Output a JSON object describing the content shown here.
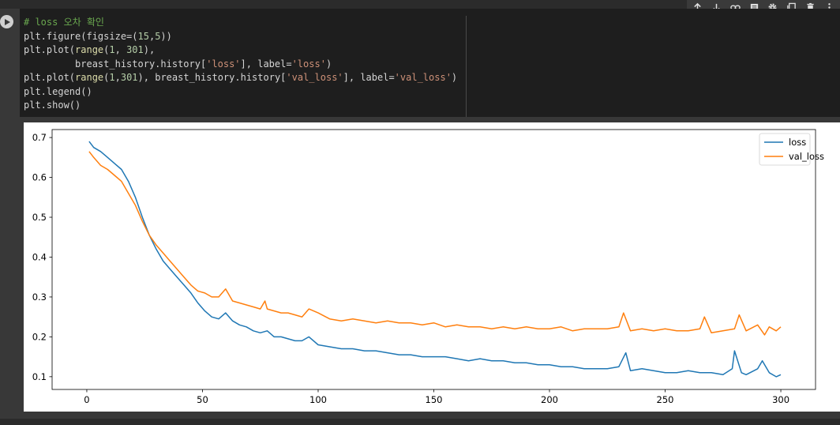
{
  "cell": {
    "run_icon": "play-icon",
    "toolbar": [
      {
        "name": "move-up",
        "icon": "arrow-up-icon"
      },
      {
        "name": "move-down",
        "icon": "arrow-down-icon"
      },
      {
        "name": "link",
        "icon": "link-icon"
      },
      {
        "name": "comment",
        "icon": "comment-icon"
      },
      {
        "name": "settings",
        "icon": "gear-icon"
      },
      {
        "name": "mirror",
        "icon": "mirror-icon"
      },
      {
        "name": "delete",
        "icon": "trash-icon"
      },
      {
        "name": "more",
        "icon": "more-vert-icon"
      }
    ],
    "code_lines": [
      [
        {
          "t": "# loss 오차 확인",
          "c": "com"
        }
      ],
      [
        {
          "t": "plt.figure(figsize=(",
          "c": ""
        },
        {
          "t": "15",
          "c": "num"
        },
        {
          "t": ",",
          "c": ""
        },
        {
          "t": "5",
          "c": "num"
        },
        {
          "t": "))",
          "c": ""
        }
      ],
      [
        {
          "t": "plt.plot(",
          "c": ""
        },
        {
          "t": "range",
          "c": "fn"
        },
        {
          "t": "(",
          "c": ""
        },
        {
          "t": "1",
          "c": "num"
        },
        {
          "t": ", ",
          "c": ""
        },
        {
          "t": "301",
          "c": "num"
        },
        {
          "t": "),",
          "c": ""
        }
      ],
      [
        {
          "t": "         breast_history.history[",
          "c": ""
        },
        {
          "t": "'loss'",
          "c": "str"
        },
        {
          "t": "], label=",
          "c": ""
        },
        {
          "t": "'loss'",
          "c": "str"
        },
        {
          "t": ")",
          "c": ""
        }
      ],
      [
        {
          "t": "plt.plot(",
          "c": ""
        },
        {
          "t": "range",
          "c": "fn"
        },
        {
          "t": "(",
          "c": ""
        },
        {
          "t": "1",
          "c": "num"
        },
        {
          "t": ",",
          "c": ""
        },
        {
          "t": "301",
          "c": "num"
        },
        {
          "t": "), breast_history.history[",
          "c": ""
        },
        {
          "t": "'val_loss'",
          "c": "str"
        },
        {
          "t": "], label=",
          "c": ""
        },
        {
          "t": "'val_loss'",
          "c": "str"
        },
        {
          "t": ")",
          "c": ""
        }
      ],
      [
        {
          "t": "plt.legend()",
          "c": ""
        }
      ],
      [
        {
          "t": "plt.show()",
          "c": ""
        }
      ]
    ]
  },
  "colors": {
    "loss": "#1f77b4",
    "val_loss": "#ff7f0e"
  },
  "chart_data": {
    "type": "line",
    "title": "",
    "xlabel": "",
    "ylabel": "",
    "xlim": [
      -15,
      315
    ],
    "ylim": [
      0.068,
      0.72
    ],
    "xticks": [
      0,
      50,
      100,
      150,
      200,
      250,
      300
    ],
    "yticks": [
      0.1,
      0.2,
      0.3,
      0.4,
      0.5,
      0.6,
      0.7
    ],
    "grid": false,
    "legend": "top-right",
    "series": [
      {
        "name": "loss",
        "x": [
          1,
          3,
          6,
          9,
          12,
          15,
          18,
          21,
          24,
          27,
          30,
          33,
          36,
          39,
          42,
          45,
          48,
          51,
          54,
          57,
          60,
          63,
          66,
          69,
          72,
          75,
          78,
          81,
          84,
          87,
          90,
          93,
          96,
          100,
          105,
          110,
          115,
          120,
          125,
          130,
          135,
          140,
          145,
          150,
          155,
          160,
          165,
          170,
          175,
          180,
          185,
          190,
          195,
          200,
          205,
          210,
          215,
          220,
          225,
          230,
          233,
          235,
          240,
          245,
          250,
          255,
          260,
          265,
          270,
          275,
          279,
          280,
          283,
          285,
          290,
          292,
          295,
          298,
          300
        ],
        "values": [
          0.69,
          0.675,
          0.665,
          0.65,
          0.635,
          0.62,
          0.59,
          0.55,
          0.5,
          0.455,
          0.42,
          0.39,
          0.37,
          0.35,
          0.33,
          0.31,
          0.285,
          0.265,
          0.25,
          0.245,
          0.26,
          0.24,
          0.23,
          0.225,
          0.215,
          0.21,
          0.215,
          0.2,
          0.2,
          0.195,
          0.19,
          0.19,
          0.2,
          0.18,
          0.175,
          0.17,
          0.17,
          0.165,
          0.165,
          0.16,
          0.155,
          0.155,
          0.15,
          0.15,
          0.15,
          0.145,
          0.14,
          0.145,
          0.14,
          0.14,
          0.135,
          0.135,
          0.13,
          0.13,
          0.125,
          0.125,
          0.12,
          0.12,
          0.12,
          0.125,
          0.16,
          0.115,
          0.12,
          0.115,
          0.11,
          0.11,
          0.115,
          0.11,
          0.11,
          0.105,
          0.12,
          0.165,
          0.11,
          0.105,
          0.12,
          0.14,
          0.11,
          0.1,
          0.105
        ]
      },
      {
        "name": "val_loss",
        "x": [
          1,
          3,
          6,
          9,
          12,
          15,
          18,
          21,
          24,
          27,
          30,
          33,
          36,
          39,
          42,
          45,
          48,
          51,
          54,
          57,
          60,
          63,
          66,
          69,
          72,
          75,
          77,
          78,
          81,
          84,
          87,
          90,
          93,
          96,
          100,
          105,
          110,
          115,
          120,
          125,
          130,
          135,
          140,
          145,
          150,
          155,
          160,
          165,
          170,
          175,
          180,
          185,
          190,
          195,
          200,
          205,
          210,
          215,
          220,
          225,
          230,
          232,
          235,
          240,
          245,
          250,
          255,
          260,
          265,
          267,
          270,
          275,
          280,
          282,
          285,
          290,
          293,
          295,
          298,
          300
        ],
        "values": [
          0.665,
          0.65,
          0.63,
          0.62,
          0.605,
          0.59,
          0.56,
          0.53,
          0.49,
          0.455,
          0.43,
          0.41,
          0.39,
          0.37,
          0.35,
          0.33,
          0.315,
          0.31,
          0.3,
          0.3,
          0.32,
          0.29,
          0.285,
          0.28,
          0.275,
          0.27,
          0.29,
          0.27,
          0.265,
          0.26,
          0.26,
          0.255,
          0.25,
          0.27,
          0.26,
          0.245,
          0.24,
          0.245,
          0.24,
          0.235,
          0.24,
          0.235,
          0.235,
          0.23,
          0.235,
          0.225,
          0.23,
          0.225,
          0.225,
          0.22,
          0.225,
          0.22,
          0.225,
          0.22,
          0.22,
          0.225,
          0.215,
          0.22,
          0.22,
          0.22,
          0.225,
          0.26,
          0.215,
          0.22,
          0.215,
          0.22,
          0.215,
          0.215,
          0.22,
          0.25,
          0.21,
          0.215,
          0.22,
          0.255,
          0.215,
          0.23,
          0.205,
          0.225,
          0.215,
          0.225
        ]
      }
    ]
  }
}
